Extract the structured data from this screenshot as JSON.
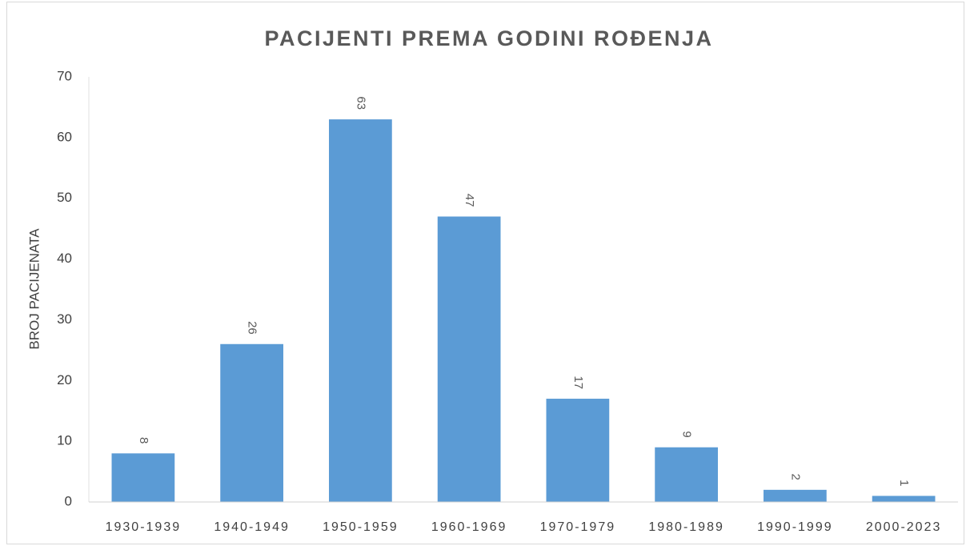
{
  "chart_data": {
    "type": "bar",
    "title": "PACIJENTI PREMA GODINI ROĐENJA",
    "y_label": "BROJ PACIJENATA",
    "categories": [
      "1930-1939",
      "1940-1949",
      "1950-1959",
      "1960-1969",
      "1970-1979",
      "1980-1989",
      "1990-1999",
      "2000-2023"
    ],
    "values": [
      8,
      26,
      63,
      47,
      17,
      9,
      2,
      1
    ],
    "color": "#5b9bd5",
    "ylim": [
      0,
      70
    ],
    "yticks": [
      0,
      10,
      20,
      30,
      40,
      50,
      60,
      70
    ],
    "grid": false
  }
}
